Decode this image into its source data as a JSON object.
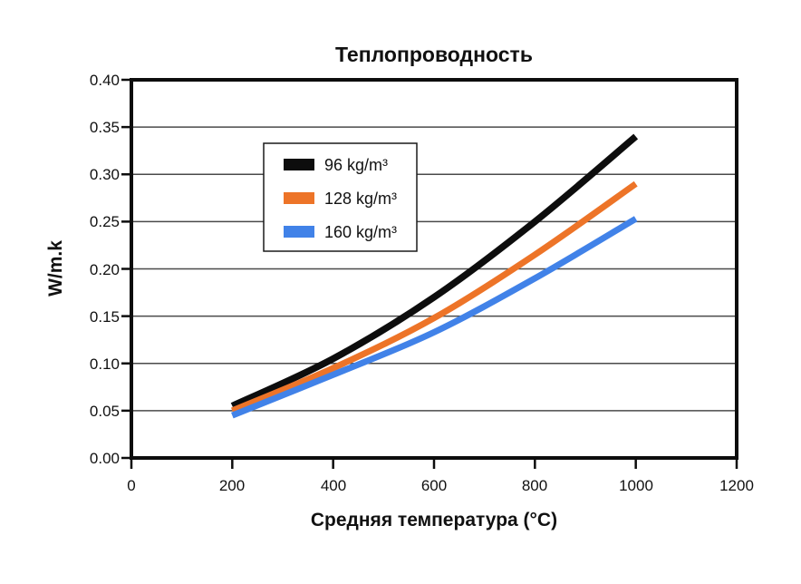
{
  "title": "Теплопроводность",
  "y_axis": {
    "label": "W/m.k",
    "ticks": [
      "0.00",
      "0.05",
      "0.10",
      "0.15",
      "0.20",
      "0.25",
      "0.30",
      "0.35",
      "0.40"
    ],
    "min": 0,
    "max": 0.4
  },
  "x_axis": {
    "label": "Средняя температура (°C)",
    "ticks": [
      "0",
      "200",
      "400",
      "600",
      "800",
      "1000",
      "1200"
    ],
    "min": 0,
    "max": 1200
  },
  "legend": [
    {
      "label": "96 kg/m³",
      "color": "#0d0d0d"
    },
    {
      "label": "128 kg/m³",
      "color": "#ed7428"
    },
    {
      "label": "160 kg/m³",
      "color": "#4182e8"
    }
  ],
  "chart_data": {
    "type": "line",
    "title": "Теплопроводность",
    "xlabel": "Средняя температура (°C)",
    "ylabel": "W/m.k",
    "xlim": [
      0,
      1200
    ],
    "ylim": [
      0,
      0.4
    ],
    "x_tick_step": 200,
    "y_tick_step": 0.05,
    "grid": "horizontal",
    "legend_position": "upper-left-inside",
    "x": [
      200,
      400,
      600,
      800,
      1000
    ],
    "series": [
      {
        "name": "96 kg/m³",
        "color": "#0d0d0d",
        "values": [
          0.055,
          0.105,
          0.17,
          0.25,
          0.34
        ]
      },
      {
        "name": "128 kg/m³",
        "color": "#ed7428",
        "values": [
          0.05,
          0.095,
          0.148,
          0.215,
          0.29
        ]
      },
      {
        "name": "160 kg/m³",
        "color": "#4182e8",
        "values": [
          0.045,
          0.088,
          0.133,
          0.19,
          0.253
        ]
      }
    ]
  }
}
